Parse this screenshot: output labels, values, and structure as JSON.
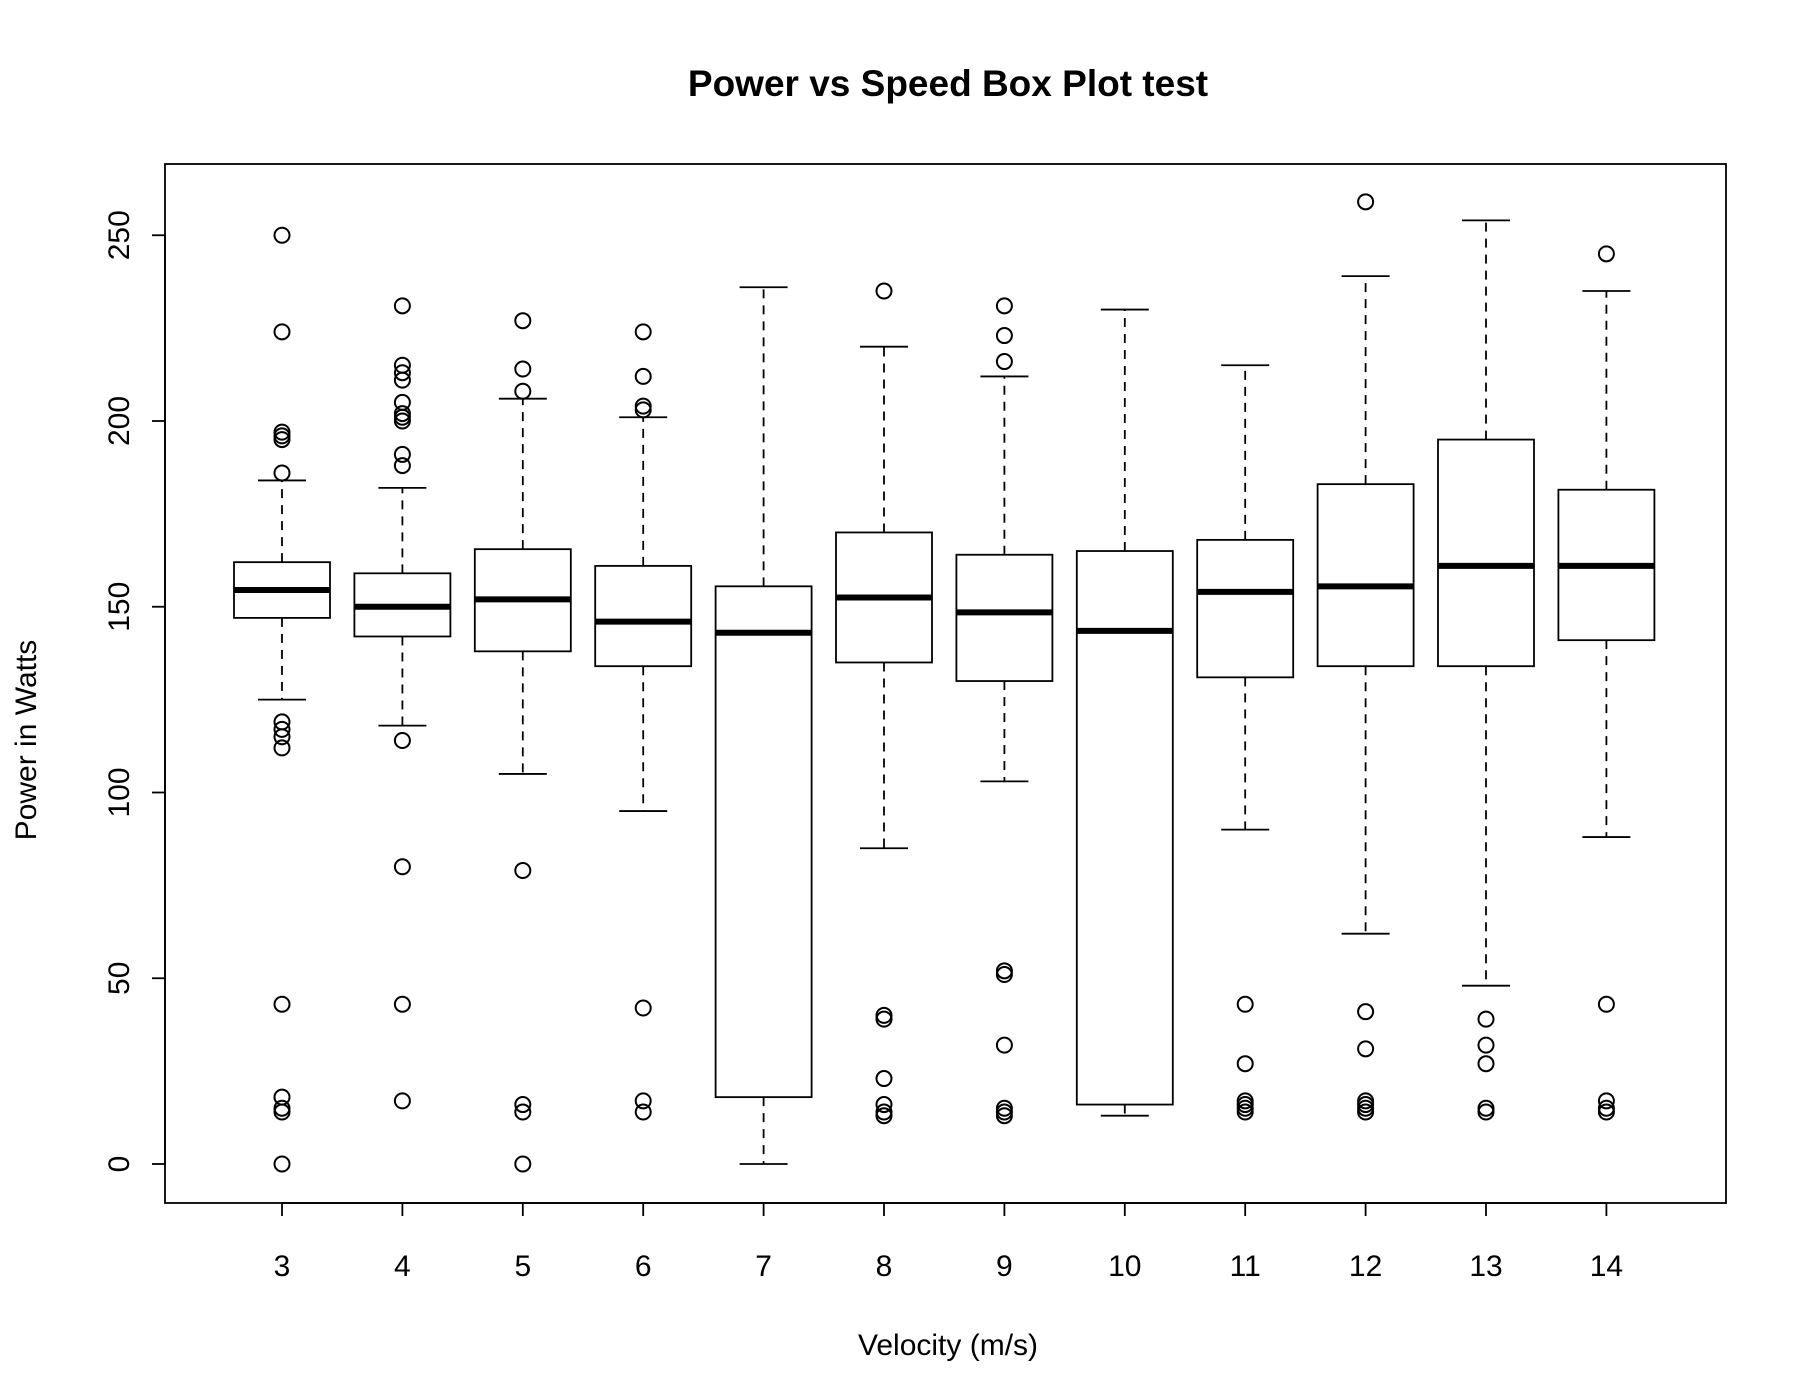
{
  "chart_data": {
    "type": "box",
    "title": "Power vs Speed Box Plot test",
    "xlabel": "Velocity (m/s)",
    "ylabel": "Power in Watts",
    "ylim": [
      -10,
      270
    ],
    "yticks": [
      0,
      50,
      100,
      150,
      200,
      250
    ],
    "ytick_labels": [
      "0",
      "50",
      "100",
      "150",
      "200",
      "250"
    ],
    "grid": false,
    "legend": "none",
    "colors": {
      "line": "#000000",
      "background": "#ffffff"
    },
    "categories": [
      "3",
      "4",
      "5",
      "6",
      "7",
      "8",
      "9",
      "10",
      "11",
      "12",
      "13",
      "14"
    ],
    "boxes": [
      {
        "category": "3",
        "whisker_low": 125,
        "q1": 147,
        "median": 154.5,
        "q3": 162,
        "whisker_high": 184,
        "outliers": [
          250,
          224,
          197,
          196,
          195,
          186,
          119,
          117,
          115,
          112,
          43,
          18,
          15,
          14,
          0
        ]
      },
      {
        "category": "4",
        "whisker_low": 118,
        "q1": 142,
        "median": 150,
        "q3": 159,
        "whisker_high": 182,
        "outliers": [
          231,
          215,
          213,
          211,
          205,
          202,
          201,
          200,
          191,
          188,
          114,
          80,
          43,
          17
        ]
      },
      {
        "category": "5",
        "whisker_low": 105,
        "q1": 138,
        "median": 152,
        "q3": 165.5,
        "whisker_high": 206,
        "outliers": [
          227,
          214,
          208,
          79,
          16,
          14,
          0
        ]
      },
      {
        "category": "6",
        "whisker_low": 95,
        "q1": 134,
        "median": 146,
        "q3": 161,
        "whisker_high": 201,
        "outliers": [
          224,
          212,
          204,
          203,
          42,
          17,
          14
        ]
      },
      {
        "category": "7",
        "whisker_low": 0,
        "q1": 18,
        "median": 143,
        "q3": 155.5,
        "whisker_high": 236,
        "outliers": []
      },
      {
        "category": "8",
        "whisker_low": 85,
        "q1": 135,
        "median": 152.5,
        "q3": 170,
        "whisker_high": 220,
        "outliers": [
          235,
          40,
          39,
          23,
          16,
          14,
          13
        ]
      },
      {
        "category": "9",
        "whisker_low": 103,
        "q1": 130,
        "median": 148.5,
        "q3": 164,
        "whisker_high": 212,
        "outliers": [
          231,
          223,
          216,
          52,
          51,
          32,
          15,
          14,
          13
        ]
      },
      {
        "category": "10",
        "whisker_low": 13,
        "q1": 16,
        "median": 143.5,
        "q3": 165,
        "whisker_high": 230,
        "outliers": []
      },
      {
        "category": "11",
        "whisker_low": 90,
        "q1": 131,
        "median": 154,
        "q3": 168,
        "whisker_high": 215,
        "outliers": [
          43,
          27,
          17,
          16,
          15,
          14
        ]
      },
      {
        "category": "12",
        "whisker_low": 62,
        "q1": 134,
        "median": 155.5,
        "q3": 183,
        "whisker_high": 239,
        "outliers": [
          259,
          41,
          31,
          17,
          16,
          15,
          14
        ]
      },
      {
        "category": "13",
        "whisker_low": 48,
        "q1": 134,
        "median": 161,
        "q3": 195,
        "whisker_high": 254,
        "outliers": [
          39,
          32,
          27,
          15,
          14
        ]
      },
      {
        "category": "14",
        "whisker_low": 88,
        "q1": 141,
        "median": 161,
        "q3": 181.5,
        "whisker_high": 235,
        "outliers": [
          245,
          43,
          17,
          15,
          14
        ]
      }
    ]
  }
}
